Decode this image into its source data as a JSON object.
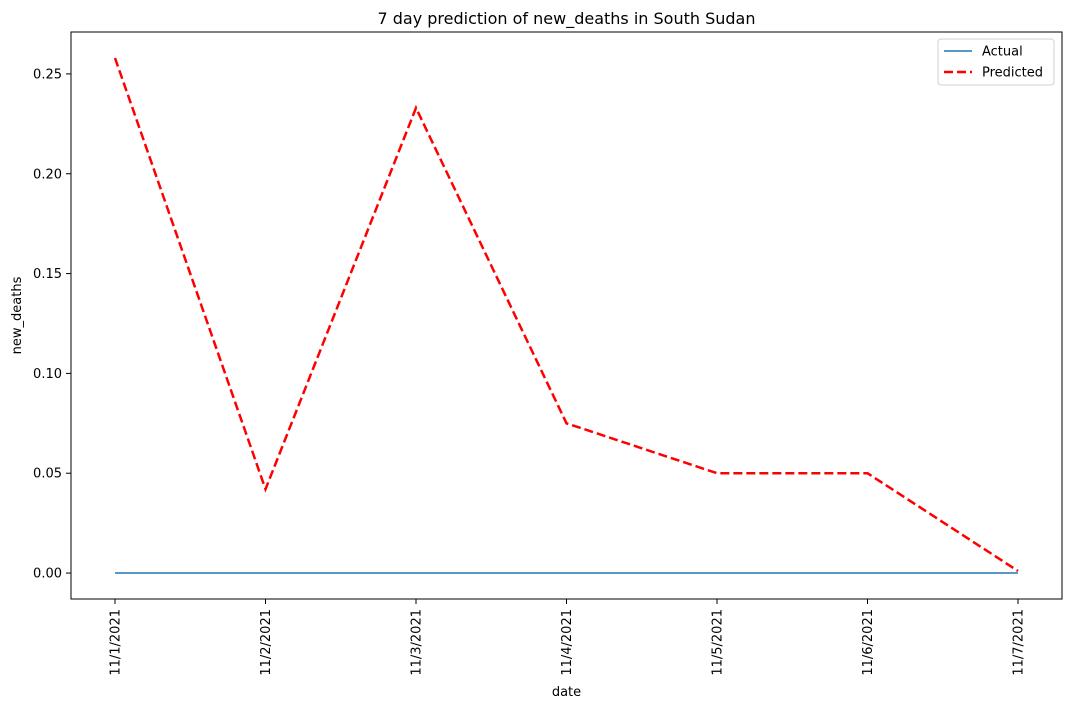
{
  "chart_data": {
    "type": "line",
    "title": "7 day prediction of new_deaths in South Sudan",
    "xlabel": "date",
    "ylabel": "new_deaths",
    "categories": [
      "11/1/2021",
      "11/2/2021",
      "11/3/2021",
      "11/4/2021",
      "11/5/2021",
      "11/6/2021",
      "11/7/2021"
    ],
    "ylim": [
      -0.013,
      0.271
    ],
    "yticks": [
      0.0,
      0.05,
      0.1,
      0.15,
      0.2,
      0.25
    ],
    "ytick_labels": [
      "0.00",
      "0.05",
      "0.10",
      "0.15",
      "0.20",
      "0.25"
    ],
    "grid": false,
    "legend_position": "top-right",
    "series": [
      {
        "name": "Actual",
        "values": [
          0,
          0,
          0,
          0,
          0,
          0,
          0
        ],
        "color": "#1f77b4",
        "style": "solid"
      },
      {
        "name": "Predicted",
        "values": [
          0.258,
          0.042,
          0.233,
          0.075,
          0.05,
          0.05,
          0.001
        ],
        "color": "#ff0000",
        "style": "dashed"
      }
    ]
  }
}
